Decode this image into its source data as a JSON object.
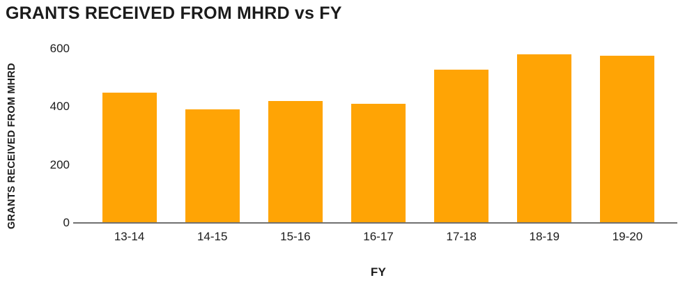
{
  "chart_data": {
    "type": "bar",
    "title": "GRANTS RECEIVED FROM MHRD vs FY",
    "xlabel": "FY",
    "ylabel": "GRANTS RECEIVED FROM MHRD",
    "categories": [
      "13-14",
      "14-15",
      "15-16",
      "16-17",
      "17-18",
      "18-19",
      "19-20"
    ],
    "values": [
      450,
      392,
      420,
      410,
      528,
      581,
      577
    ],
    "ylim": [
      0,
      600
    ],
    "yticks": [
      0,
      200,
      400,
      600
    ],
    "grid": false,
    "legend": false,
    "colors": {
      "bar": "#FFA405",
      "axis_line": "#707070",
      "text": "#1B1B1B"
    }
  }
}
